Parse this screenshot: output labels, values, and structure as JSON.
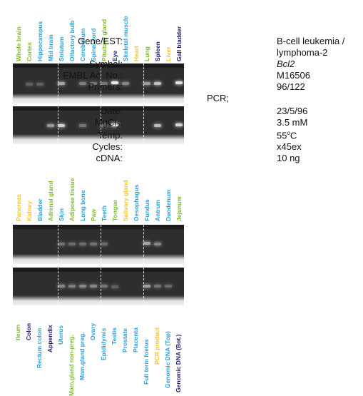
{
  "panel1": {
    "labels": [
      {
        "text": "Whole brain",
        "color": "#7cbb2a"
      },
      {
        "text": "Cortex",
        "color": "#7cbb2a"
      },
      {
        "text": "Hippocampus",
        "color": "#2a9fd6"
      },
      {
        "text": "Mid brain",
        "color": "#2a9fd6"
      },
      {
        "text": "Striatum",
        "color": "#2a9fd6"
      },
      {
        "text": "Olfactory bulb",
        "color": "#2a9fd6"
      },
      {
        "text": "Cerebellum",
        "color": "#2a9fd6"
      },
      {
        "text": "Spinal cord",
        "color": "#2a9fd6"
      },
      {
        "text": "Pituitary gland",
        "color": "#7cbb2a"
      },
      {
        "text": "Eye",
        "color": "#1a1a6e"
      },
      {
        "text": "Skeletal muscle",
        "color": "#2a9fd6"
      },
      {
        "text": "Heart",
        "color": "#f2c232"
      },
      {
        "text": "Lung",
        "color": "#7cbb2a"
      },
      {
        "text": "Spleen",
        "color": "#1a1a6e"
      },
      {
        "text": "Liver",
        "color": "#f2c232"
      },
      {
        "text": "Gall bladder",
        "color": "#1a1a6e"
      }
    ]
  },
  "panel2": {
    "labels": [
      {
        "text": "Pancreas",
        "color": "#f2c232"
      },
      {
        "text": "Kidney",
        "color": "#f2c232"
      },
      {
        "text": "Bladder",
        "color": "#2a9fd6"
      },
      {
        "text": "Adrenal gland",
        "color": "#7cbb2a"
      },
      {
        "text": "Skin",
        "color": "#2a9fd6"
      },
      {
        "text": "Adipose tissue",
        "color": "#7cbb2a"
      },
      {
        "text": "Long bone",
        "color": "#2a9fd6"
      },
      {
        "text": "Paw",
        "color": "#7cbb2a"
      },
      {
        "text": "Teeth",
        "color": "#2a9fd6"
      },
      {
        "text": "Tongue",
        "color": "#7cbb2a"
      },
      {
        "text": "Salivary gland",
        "color": "#f2c232"
      },
      {
        "text": "Oesophagus",
        "color": "#2a9fd6"
      },
      {
        "text": "Fundus",
        "color": "#2a9fd6"
      },
      {
        "text": "Antrum",
        "color": "#2a9fd6"
      },
      {
        "text": "Duodenum",
        "color": "#2a9fd6"
      },
      {
        "text": "Jejunum",
        "color": "#7cbb2a"
      }
    ]
  },
  "panel3": {
    "labels": [
      {
        "text": "Ileum",
        "color": "#7cbb2a"
      },
      {
        "text": "Colon",
        "color": "#1a1a6e"
      },
      {
        "text": "Rectum colon",
        "color": "#2a9fd6"
      },
      {
        "text": "Appendix",
        "color": "#1a1a6e"
      },
      {
        "text": "Uterus",
        "color": "#2a9fd6"
      },
      {
        "text": "Mam.gland non-preg.",
        "color": "#7cbb2a"
      },
      {
        "text": "Mam.gland preg.",
        "color": "#2a9fd6"
      },
      {
        "text": "Ovary",
        "color": "#2a9fd6"
      },
      {
        "text": "Epididymis",
        "color": "#2a9fd6"
      },
      {
        "text": "Testis",
        "color": "#2a9fd6"
      },
      {
        "text": "Prostate",
        "color": "#2a9fd6"
      },
      {
        "text": "Placenta",
        "color": "#2a9fd6"
      },
      {
        "text": "Full term foetus",
        "color": "#2a9fd6"
      },
      {
        "text": "PCR product",
        "color": "#f2c232"
      },
      {
        "text": "Genomic DNA (Top)",
        "color": "#2a9fd6"
      },
      {
        "text": "Genomic DNA (Bot.)",
        "color": "#1a1a6e"
      }
    ]
  },
  "info": {
    "gene_key": "Gene/EST:",
    "gene_val1": "B-cell leukemia /",
    "gene_val2": "lymphoma-2",
    "symbol_key": "Symbol:",
    "symbol_val": "Bcl2",
    "embl_key": "EMBL Ac. No.:",
    "embl_val": "M16506",
    "primers_key": "Primers:",
    "primers_val": "96/122",
    "pcr_key": "PCR;",
    "date_key": "Date:",
    "date_val": "23/5/96",
    "mgcl_key_a": "MgCl",
    "mgcl_key_sub": "2",
    "mgcl_key_b": ":",
    "mgcl_val": "3.5 mM",
    "temp_key": "Temp:",
    "temp_val_a": "55",
    "temp_val_sup": "o",
    "temp_val_b": "C",
    "cycles_key": "Cycles:",
    "cycles_val": "x45ex",
    "cdna_key": "cDNA:",
    "cdna_val": "10 ng"
  }
}
